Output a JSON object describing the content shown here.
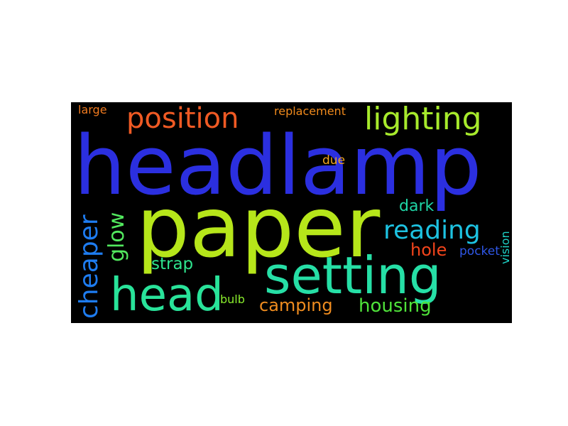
{
  "wordcloud": {
    "background": "#000000",
    "words": {
      "headlamp": {
        "text": "headlamp",
        "color": "#2b2fe0"
      },
      "paper": {
        "text": "paper",
        "color": "#b6e61a"
      },
      "setting": {
        "text": "setting",
        "color": "#26dfa6"
      },
      "head": {
        "text": "head",
        "color": "#29e39a"
      },
      "position": {
        "text": "position",
        "color": "#f05a24"
      },
      "lighting": {
        "text": "lighting",
        "color": "#a7ea2c"
      },
      "reading": {
        "text": "reading",
        "color": "#1dc2e1"
      },
      "cheaper": {
        "text": "cheaper",
        "color": "#1e7cf0"
      },
      "glow": {
        "text": "glow",
        "color": "#52e85e"
      },
      "dark": {
        "text": "dark",
        "color": "#1fd6a6"
      },
      "hole": {
        "text": "hole",
        "color": "#f2441b"
      },
      "pocket": {
        "text": "pocket",
        "color": "#2f57e8"
      },
      "strap": {
        "text": "strap",
        "color": "#2ee48e"
      },
      "camping": {
        "text": "camping",
        "color": "#ef8c1f"
      },
      "housing": {
        "text": "housing",
        "color": "#4fe23a"
      },
      "bulb": {
        "text": "bulb",
        "color": "#89ec2c"
      },
      "vision": {
        "text": "vision",
        "color": "#1ed2c6"
      },
      "due": {
        "text": "due",
        "color": "#f0a51e"
      },
      "large": {
        "text": "large",
        "color": "#f07a1f"
      },
      "replacement": {
        "text": "replacement",
        "color": "#f08a1c"
      }
    }
  }
}
